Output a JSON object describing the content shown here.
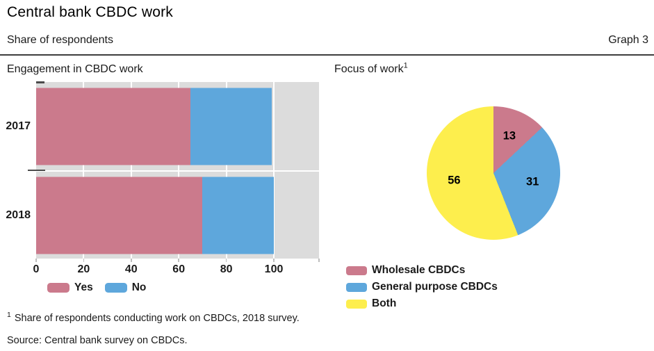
{
  "header": {
    "title": "Central bank CBDC work",
    "subtitle": "Share of respondents",
    "graph_label": "Graph 3"
  },
  "panels": {
    "left": {
      "title": "Engagement in CBDC work"
    },
    "right": {
      "title": "Focus of work",
      "title_superscript": "1"
    }
  },
  "chart_data": [
    {
      "type": "bar",
      "orientation": "horizontal",
      "stacked": true,
      "title": "Engagement in CBDC work",
      "categories": [
        "2017",
        "2018"
      ],
      "series": [
        {
          "name": "Yes",
          "color": "#cb7a8c",
          "values": [
            65,
            70
          ]
        },
        {
          "name": "No",
          "color": "#5ea7dc",
          "values": [
            34,
            30
          ]
        }
      ],
      "xlabel": "",
      "ylabel": "",
      "xlim": [
        0,
        119
      ],
      "xticks": [
        0,
        20,
        40,
        60,
        80,
        100
      ],
      "grid": true,
      "plot_background": "#dcdcdc",
      "gridline_color": "#ffffff",
      "legend_position": "bottom"
    },
    {
      "type": "pie",
      "title": "Focus of work",
      "labels": [
        "Wholesale CBDCs",
        "General purpose CBDCs",
        "Both"
      ],
      "values": [
        13,
        31,
        56
      ],
      "colors": [
        "#cb7a8c",
        "#5ea7dc",
        "#fdee4d"
      ],
      "start_angle_deg": 0,
      "direction": "clockwise",
      "value_labels": [
        "13",
        "31",
        "56"
      ],
      "legend_position": "bottom-left"
    }
  ],
  "footnote": {
    "marker": "1",
    "text": "Share of respondents conducting work on CBDCs, 2018 survey."
  },
  "source": "Source: Central bank survey on CBDCs."
}
